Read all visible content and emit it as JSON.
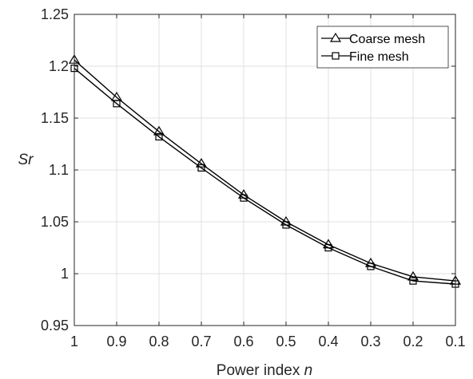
{
  "chart_data": {
    "type": "line",
    "x": [
      1,
      0.9,
      0.8,
      0.7,
      0.6,
      0.5,
      0.4,
      0.3,
      0.2,
      0.1
    ],
    "x_tick_labels": [
      "1",
      "0.9",
      "0.8",
      "0.7",
      "0.6",
      "0.5",
      "0.4",
      "0.3",
      "0.2",
      "0.1"
    ],
    "y_tick_labels": [
      "0.95",
      "1",
      "1.05",
      "1.1",
      "1.15",
      "1.2",
      "1.25"
    ],
    "xlabel_text": "Power index ",
    "xlabel_var": "n",
    "ylabel": "Sr",
    "xlim": [
      1,
      0.1
    ],
    "ylim": [
      0.95,
      1.25
    ],
    "x_reversed": true,
    "grid": true,
    "legend_position": "top-right",
    "series": [
      {
        "name": "Coarse mesh",
        "marker": "triangle",
        "color": "#000000",
        "values": [
          1.206,
          1.17,
          1.137,
          1.106,
          1.076,
          1.05,
          1.028,
          1.01,
          0.997,
          0.993
        ]
      },
      {
        "name": "Fine mesh",
        "marker": "square",
        "color": "#000000",
        "values": [
          1.198,
          1.164,
          1.132,
          1.102,
          1.073,
          1.047,
          1.025,
          1.007,
          0.993,
          0.99
        ]
      }
    ]
  }
}
